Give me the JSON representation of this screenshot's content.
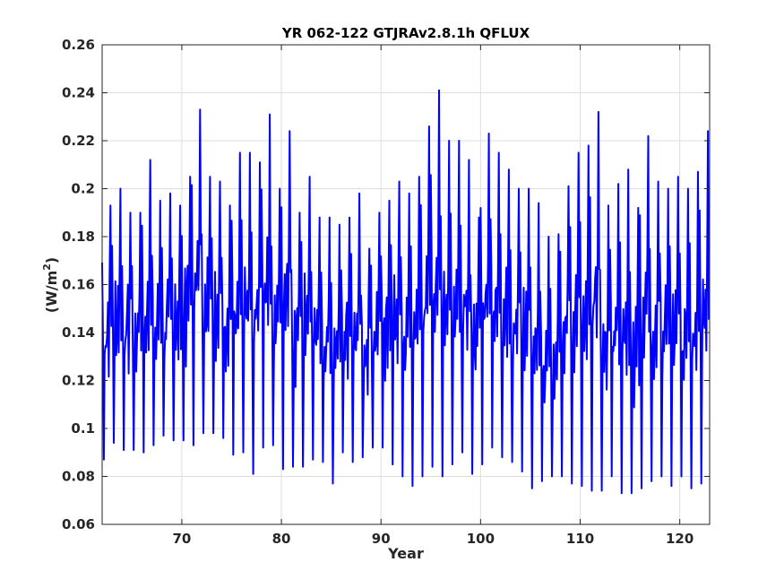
{
  "chart_data": {
    "type": "line",
    "title": "YR 062-122 GTJRAv2.8.1h QFLUX",
    "xlabel": "Year",
    "ylabel": "(W/m",
    "ylabel_sup": "2",
    "ylabel_close": ")",
    "xlim": [
      62,
      123
    ],
    "ylim": [
      0.06,
      0.26
    ],
    "xticks": [
      70,
      80,
      90,
      100,
      110,
      120
    ],
    "yticks": [
      0.06,
      0.08,
      0.1,
      0.12,
      0.14,
      0.16,
      0.18,
      0.2,
      0.22,
      0.24,
      0.26
    ],
    "grid": true,
    "line_color": "#0000ff",
    "series": [
      {
        "samples_per_year": 12,
        "x_start": 62.0,
        "envelope_years": [
          62,
          63,
          64,
          65,
          66,
          67,
          68,
          69,
          70,
          71,
          72,
          73,
          74,
          75,
          76,
          77,
          78,
          79,
          80,
          81,
          82,
          83,
          84,
          85,
          86,
          87,
          88,
          89,
          90,
          91,
          92,
          93,
          94,
          95,
          96,
          97,
          98,
          99,
          100,
          101,
          102,
          103,
          104,
          105,
          106,
          107,
          108,
          109,
          110,
          111,
          112,
          113,
          114,
          115,
          116,
          117,
          118,
          119,
          120,
          121,
          122
        ],
        "annual_max": [
          0.193,
          0.2,
          0.19,
          0.19,
          0.212,
          0.195,
          0.198,
          0.193,
          0.205,
          0.233,
          0.205,
          0.203,
          0.193,
          0.215,
          0.215,
          0.211,
          0.231,
          0.2,
          0.224,
          0.19,
          0.205,
          0.188,
          0.188,
          0.185,
          0.188,
          0.198,
          0.175,
          0.19,
          0.195,
          0.203,
          0.198,
          0.205,
          0.226,
          0.241,
          0.22,
          0.22,
          0.212,
          0.188,
          0.223,
          0.215,
          0.208,
          0.2,
          0.2,
          0.194,
          0.18,
          0.181,
          0.201,
          0.215,
          0.218,
          0.232,
          0.193,
          0.202,
          0.208,
          0.192,
          0.222,
          0.203,
          0.2,
          0.205,
          0.2,
          0.207,
          0.224
        ],
        "annual_min": [
          0.087,
          0.094,
          0.091,
          0.091,
          0.09,
          0.093,
          0.097,
          0.095,
          0.095,
          0.093,
          0.098,
          0.098,
          0.096,
          0.089,
          0.09,
          0.081,
          0.092,
          0.093,
          0.083,
          0.084,
          0.084,
          0.087,
          0.086,
          0.077,
          0.09,
          0.086,
          0.088,
          0.092,
          0.092,
          0.085,
          0.08,
          0.076,
          0.08,
          0.084,
          0.08,
          0.085,
          0.09,
          0.081,
          0.085,
          0.092,
          0.088,
          0.086,
          0.082,
          0.075,
          0.078,
          0.08,
          0.08,
          0.077,
          0.076,
          0.074,
          0.074,
          0.08,
          0.073,
          0.073,
          0.075,
          0.078,
          0.08,
          0.076,
          0.08,
          0.075,
          0.077
        ]
      }
    ]
  }
}
